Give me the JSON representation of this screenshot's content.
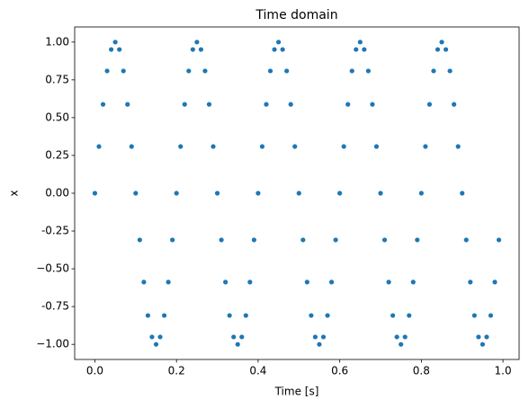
{
  "chart_data": {
    "type": "scatter",
    "title": "Time domain",
    "xlabel": "Time [s]",
    "ylabel": "x",
    "color": "#1f77b4",
    "x": [
      0,
      0.01,
      0.02,
      0.03,
      0.04,
      0.05,
      0.06,
      0.07,
      0.08,
      0.09,
      0.1,
      0.11,
      0.12,
      0.13,
      0.14,
      0.15,
      0.16,
      0.17,
      0.18,
      0.19,
      0.2,
      0.21,
      0.22,
      0.23,
      0.24,
      0.25,
      0.26,
      0.27,
      0.28,
      0.29,
      0.3,
      0.31,
      0.32,
      0.33,
      0.34,
      0.35,
      0.36,
      0.37,
      0.38,
      0.39,
      0.4,
      0.41,
      0.42,
      0.43,
      0.44,
      0.45,
      0.46,
      0.47,
      0.48,
      0.49,
      0.5,
      0.51,
      0.52,
      0.53,
      0.54,
      0.55,
      0.56,
      0.57,
      0.58,
      0.59,
      0.6,
      0.61,
      0.62,
      0.63,
      0.64,
      0.65,
      0.66,
      0.67,
      0.68,
      0.69,
      0.7,
      0.71,
      0.72,
      0.73,
      0.74,
      0.75,
      0.76,
      0.77,
      0.78,
      0.79,
      0.8,
      0.81,
      0.82,
      0.83,
      0.84,
      0.85,
      0.86,
      0.87,
      0.88,
      0.89,
      0.9,
      0.91,
      0.92,
      0.93,
      0.94,
      0.95,
      0.96,
      0.97,
      0.98,
      0.99
    ],
    "values": [
      0,
      0.309,
      0.588,
      0.809,
      0.951,
      1,
      0.951,
      0.809,
      0.588,
      0.309,
      0,
      -0.309,
      -0.588,
      -0.809,
      -0.951,
      -1,
      -0.951,
      -0.809,
      -0.588,
      -0.309,
      0,
      0.309,
      0.588,
      0.809,
      0.951,
      1,
      0.951,
      0.809,
      0.588,
      0.309,
      0,
      -0.309,
      -0.588,
      -0.809,
      -0.951,
      -1,
      -0.951,
      -0.809,
      -0.588,
      -0.309,
      0,
      0.309,
      0.588,
      0.809,
      0.951,
      1,
      0.951,
      0.809,
      0.588,
      0.309,
      0,
      -0.309,
      -0.588,
      -0.809,
      -0.951,
      -1,
      -0.951,
      -0.809,
      -0.588,
      -0.309,
      0,
      0.309,
      0.588,
      0.809,
      0.951,
      1,
      0.951,
      0.809,
      0.588,
      0.309,
      0,
      -0.309,
      -0.588,
      -0.809,
      -0.951,
      -1,
      -0.951,
      -0.809,
      -0.588,
      -0.309,
      0,
      0.309,
      0.588,
      0.809,
      0.951,
      1,
      0.951,
      0.809,
      0.588,
      0.309,
      0,
      -0.309,
      -0.588,
      -0.809,
      -0.951,
      -1,
      -0.951,
      -0.809,
      -0.588,
      -0.309
    ],
    "xlim": [
      -0.0495,
      1.0395
    ],
    "xticks": [
      {
        "value": 0,
        "label": "0.0"
      },
      0.2,
      0.4,
      0.6,
      0.8,
      {
        "value": 1,
        "label": "1.0"
      }
    ],
    "ylim": [
      -1.1,
      1.1
    ],
    "yticks": [
      {
        "value": -1,
        "label": "−1.00"
      },
      -0.75,
      {
        "value": -0.5,
        "label": "−0.50"
      },
      -0.25,
      {
        "value": 0,
        "label": "0.00"
      },
      0.25,
      {
        "value": 0.5,
        "label": "0.50"
      },
      0.75,
      {
        "value": 1,
        "label": "1.00"
      }
    ]
  }
}
